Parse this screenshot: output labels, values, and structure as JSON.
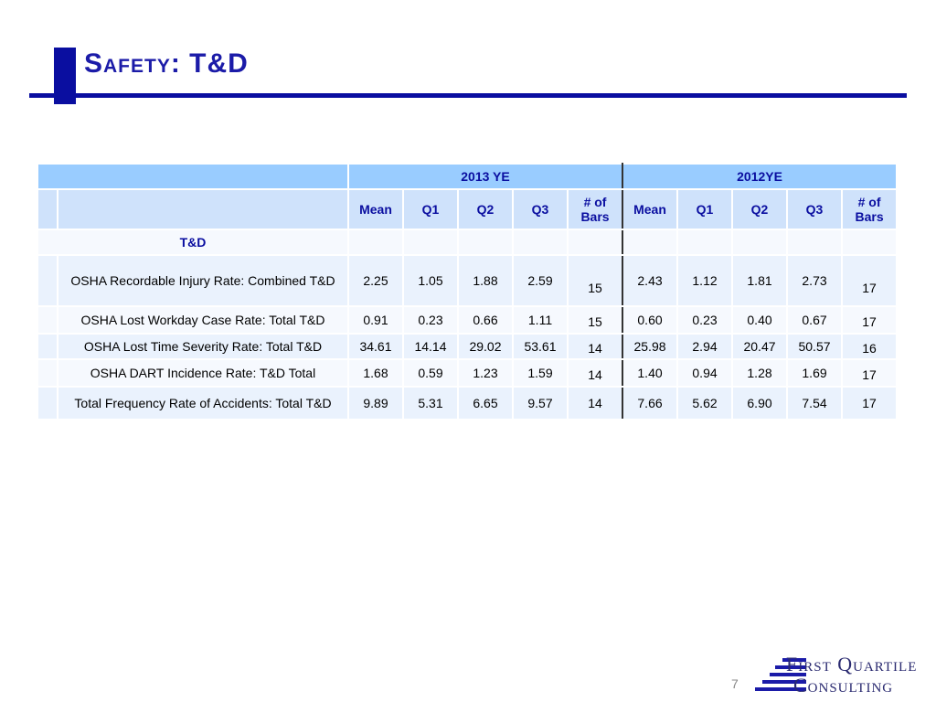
{
  "slide": {
    "title": "Safety: T&D",
    "page_number": "7"
  },
  "table": {
    "group_headers": [
      "2013 YE",
      "2012YE"
    ],
    "column_headers": [
      "Mean",
      "Q1",
      "Q2",
      "Q3",
      "# of Bars",
      "Mean",
      "Q1",
      "Q2",
      "Q3",
      "# of Bars"
    ],
    "section_label": "T&D",
    "rows": [
      {
        "label": "OSHA Recordable Injury Rate: Combined T&D",
        "values": [
          "2.25",
          "1.05",
          "1.88",
          "2.59",
          "15",
          "2.43",
          "1.12",
          "1.81",
          "2.73",
          "17"
        ]
      },
      {
        "label": "OSHA Lost Workday Case Rate: Total T&D",
        "values": [
          "0.91",
          "0.23",
          "0.66",
          "1.11",
          "15",
          "0.60",
          "0.23",
          "0.40",
          "0.67",
          "17"
        ]
      },
      {
        "label": "OSHA Lost Time Severity Rate: Total T&D",
        "values": [
          "34.61",
          "14.14",
          "29.02",
          "53.61",
          "14",
          "25.98",
          "2.94",
          "20.47",
          "50.57",
          "16"
        ]
      },
      {
        "label": "OSHA DART Incidence Rate: T&D Total",
        "values": [
          "1.68",
          "0.59",
          "1.23",
          "1.59",
          "14",
          "1.40",
          "0.94",
          "1.28",
          "1.69",
          "17"
        ]
      },
      {
        "label": "Total Frequency Rate of Accidents: Total T&D",
        "values": [
          "9.89",
          "5.31",
          "6.65",
          "9.57",
          "14",
          "7.66",
          "5.62",
          "6.90",
          "7.54",
          "17"
        ]
      }
    ]
  },
  "logo": {
    "line1": "First Quartile",
    "line2": "Consulting"
  },
  "colors": {
    "brand_blue": "#0a0ea0",
    "header_band": "#99ccff",
    "row_light": "#eaf2fd"
  }
}
